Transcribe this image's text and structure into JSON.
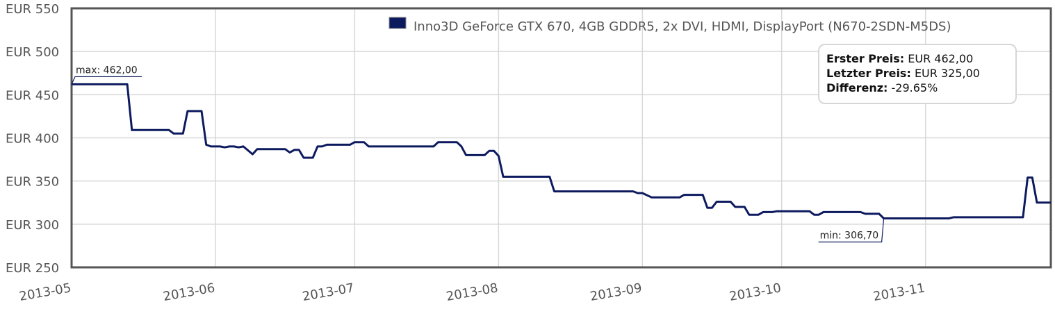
{
  "chart_data": {
    "type": "line",
    "series": [
      {
        "name": "Inno3D GeForce GTX 670, 4GB GDDR5, 2x DVI, HDMI, DisplayPort (N670-2SDN-M5DS)",
        "color": "#0d1a5e",
        "points": [
          [
            "2013-05-01",
            462
          ],
          [
            "2013-05-13",
            462
          ],
          [
            "2013-05-14",
            409
          ],
          [
            "2013-05-22",
            409
          ],
          [
            "2013-05-23",
            405
          ],
          [
            "2013-05-25",
            405
          ],
          [
            "2013-05-26",
            431
          ],
          [
            "2013-05-29",
            431
          ],
          [
            "2013-05-30",
            392
          ],
          [
            "2013-05-31",
            390
          ],
          [
            "2013-06-02",
            390
          ],
          [
            "2013-06-03",
            389
          ],
          [
            "2013-06-04",
            390
          ],
          [
            "2013-06-05",
            390
          ],
          [
            "2013-06-06",
            389
          ],
          [
            "2013-06-07",
            390
          ],
          [
            "2013-06-09",
            381
          ],
          [
            "2013-06-10",
            387
          ],
          [
            "2013-06-16",
            387
          ],
          [
            "2013-06-17",
            383
          ],
          [
            "2013-06-18",
            386
          ],
          [
            "2013-06-19",
            386
          ],
          [
            "2013-06-20",
            377
          ],
          [
            "2013-06-22",
            377
          ],
          [
            "2013-06-23",
            390
          ],
          [
            "2013-06-24",
            390
          ],
          [
            "2013-06-25",
            392
          ],
          [
            "2013-06-30",
            392
          ],
          [
            "2013-07-01",
            395
          ],
          [
            "2013-07-03",
            395
          ],
          [
            "2013-07-04",
            390
          ],
          [
            "2013-07-18",
            390
          ],
          [
            "2013-07-19",
            395
          ],
          [
            "2013-07-23",
            395
          ],
          [
            "2013-07-24",
            390
          ],
          [
            "2013-07-25",
            380
          ],
          [
            "2013-07-29",
            380
          ],
          [
            "2013-07-30",
            385
          ],
          [
            "2013-07-31",
            385
          ],
          [
            "2013-08-01",
            379
          ],
          [
            "2013-08-02",
            355
          ],
          [
            "2013-08-12",
            355
          ],
          [
            "2013-08-13",
            338
          ],
          [
            "2013-08-30",
            338
          ],
          [
            "2013-08-31",
            336
          ],
          [
            "2013-09-01",
            336
          ],
          [
            "2013-09-03",
            331
          ],
          [
            "2013-09-09",
            331
          ],
          [
            "2013-09-10",
            334
          ],
          [
            "2013-09-14",
            334
          ],
          [
            "2013-09-15",
            319
          ],
          [
            "2013-09-16",
            319
          ],
          [
            "2013-09-17",
            326
          ],
          [
            "2013-09-20",
            326
          ],
          [
            "2013-09-21",
            320
          ],
          [
            "2013-09-23",
            320
          ],
          [
            "2013-09-24",
            311
          ],
          [
            "2013-09-26",
            311
          ],
          [
            "2013-09-27",
            314
          ],
          [
            "2013-09-29",
            314
          ],
          [
            "2013-09-30",
            315
          ],
          [
            "2013-10-07",
            315
          ],
          [
            "2013-10-08",
            311
          ],
          [
            "2013-10-09",
            311
          ],
          [
            "2013-10-10",
            314
          ],
          [
            "2013-10-18",
            314
          ],
          [
            "2013-10-19",
            312
          ],
          [
            "2013-10-22",
            312
          ],
          [
            "2013-10-23",
            306.7
          ],
          [
            "2013-11-06",
            306.7
          ],
          [
            "2013-11-07",
            308
          ],
          [
            "2013-11-22",
            308
          ],
          [
            "2013-11-23",
            354
          ],
          [
            "2013-11-24",
            354
          ],
          [
            "2013-11-25",
            325
          ],
          [
            "2013-11-28",
            325
          ]
        ]
      }
    ],
    "y_tick_labels": [
      "EUR 550",
      "EUR 500",
      "EUR 450",
      "EUR 400",
      "EUR 350",
      "EUR 300",
      "EUR 250"
    ],
    "y_ticks": [
      550,
      500,
      450,
      400,
      350,
      300,
      250
    ],
    "ylim": [
      250,
      550
    ],
    "x_tick_labels": [
      "2013-05",
      "2013-06",
      "2013-07",
      "2013-08",
      "2013-09",
      "2013-10",
      "2013-11"
    ],
    "x_ticks": [
      "2013-05-01",
      "2013-06-01",
      "2013-07-01",
      "2013-08-01",
      "2013-09-01",
      "2013-10-01",
      "2013-11-01"
    ],
    "xlim": [
      "2013-05-01",
      "2013-11-28"
    ],
    "grid": true,
    "legend_position": "top-right",
    "annotations": {
      "max_label": "max: 462,00",
      "max_date": "2013-05-01",
      "max_value": 462,
      "min_label": "min: 306,70",
      "min_date": "2013-10-23",
      "min_value": 306.7
    }
  },
  "stats": {
    "first_label": "Erster Preis:",
    "first_value": "EUR 462,00",
    "last_label": "Letzter Preis:",
    "last_value": "EUR 325,00",
    "diff_label": "Differenz:",
    "diff_value": "-29.65%"
  }
}
